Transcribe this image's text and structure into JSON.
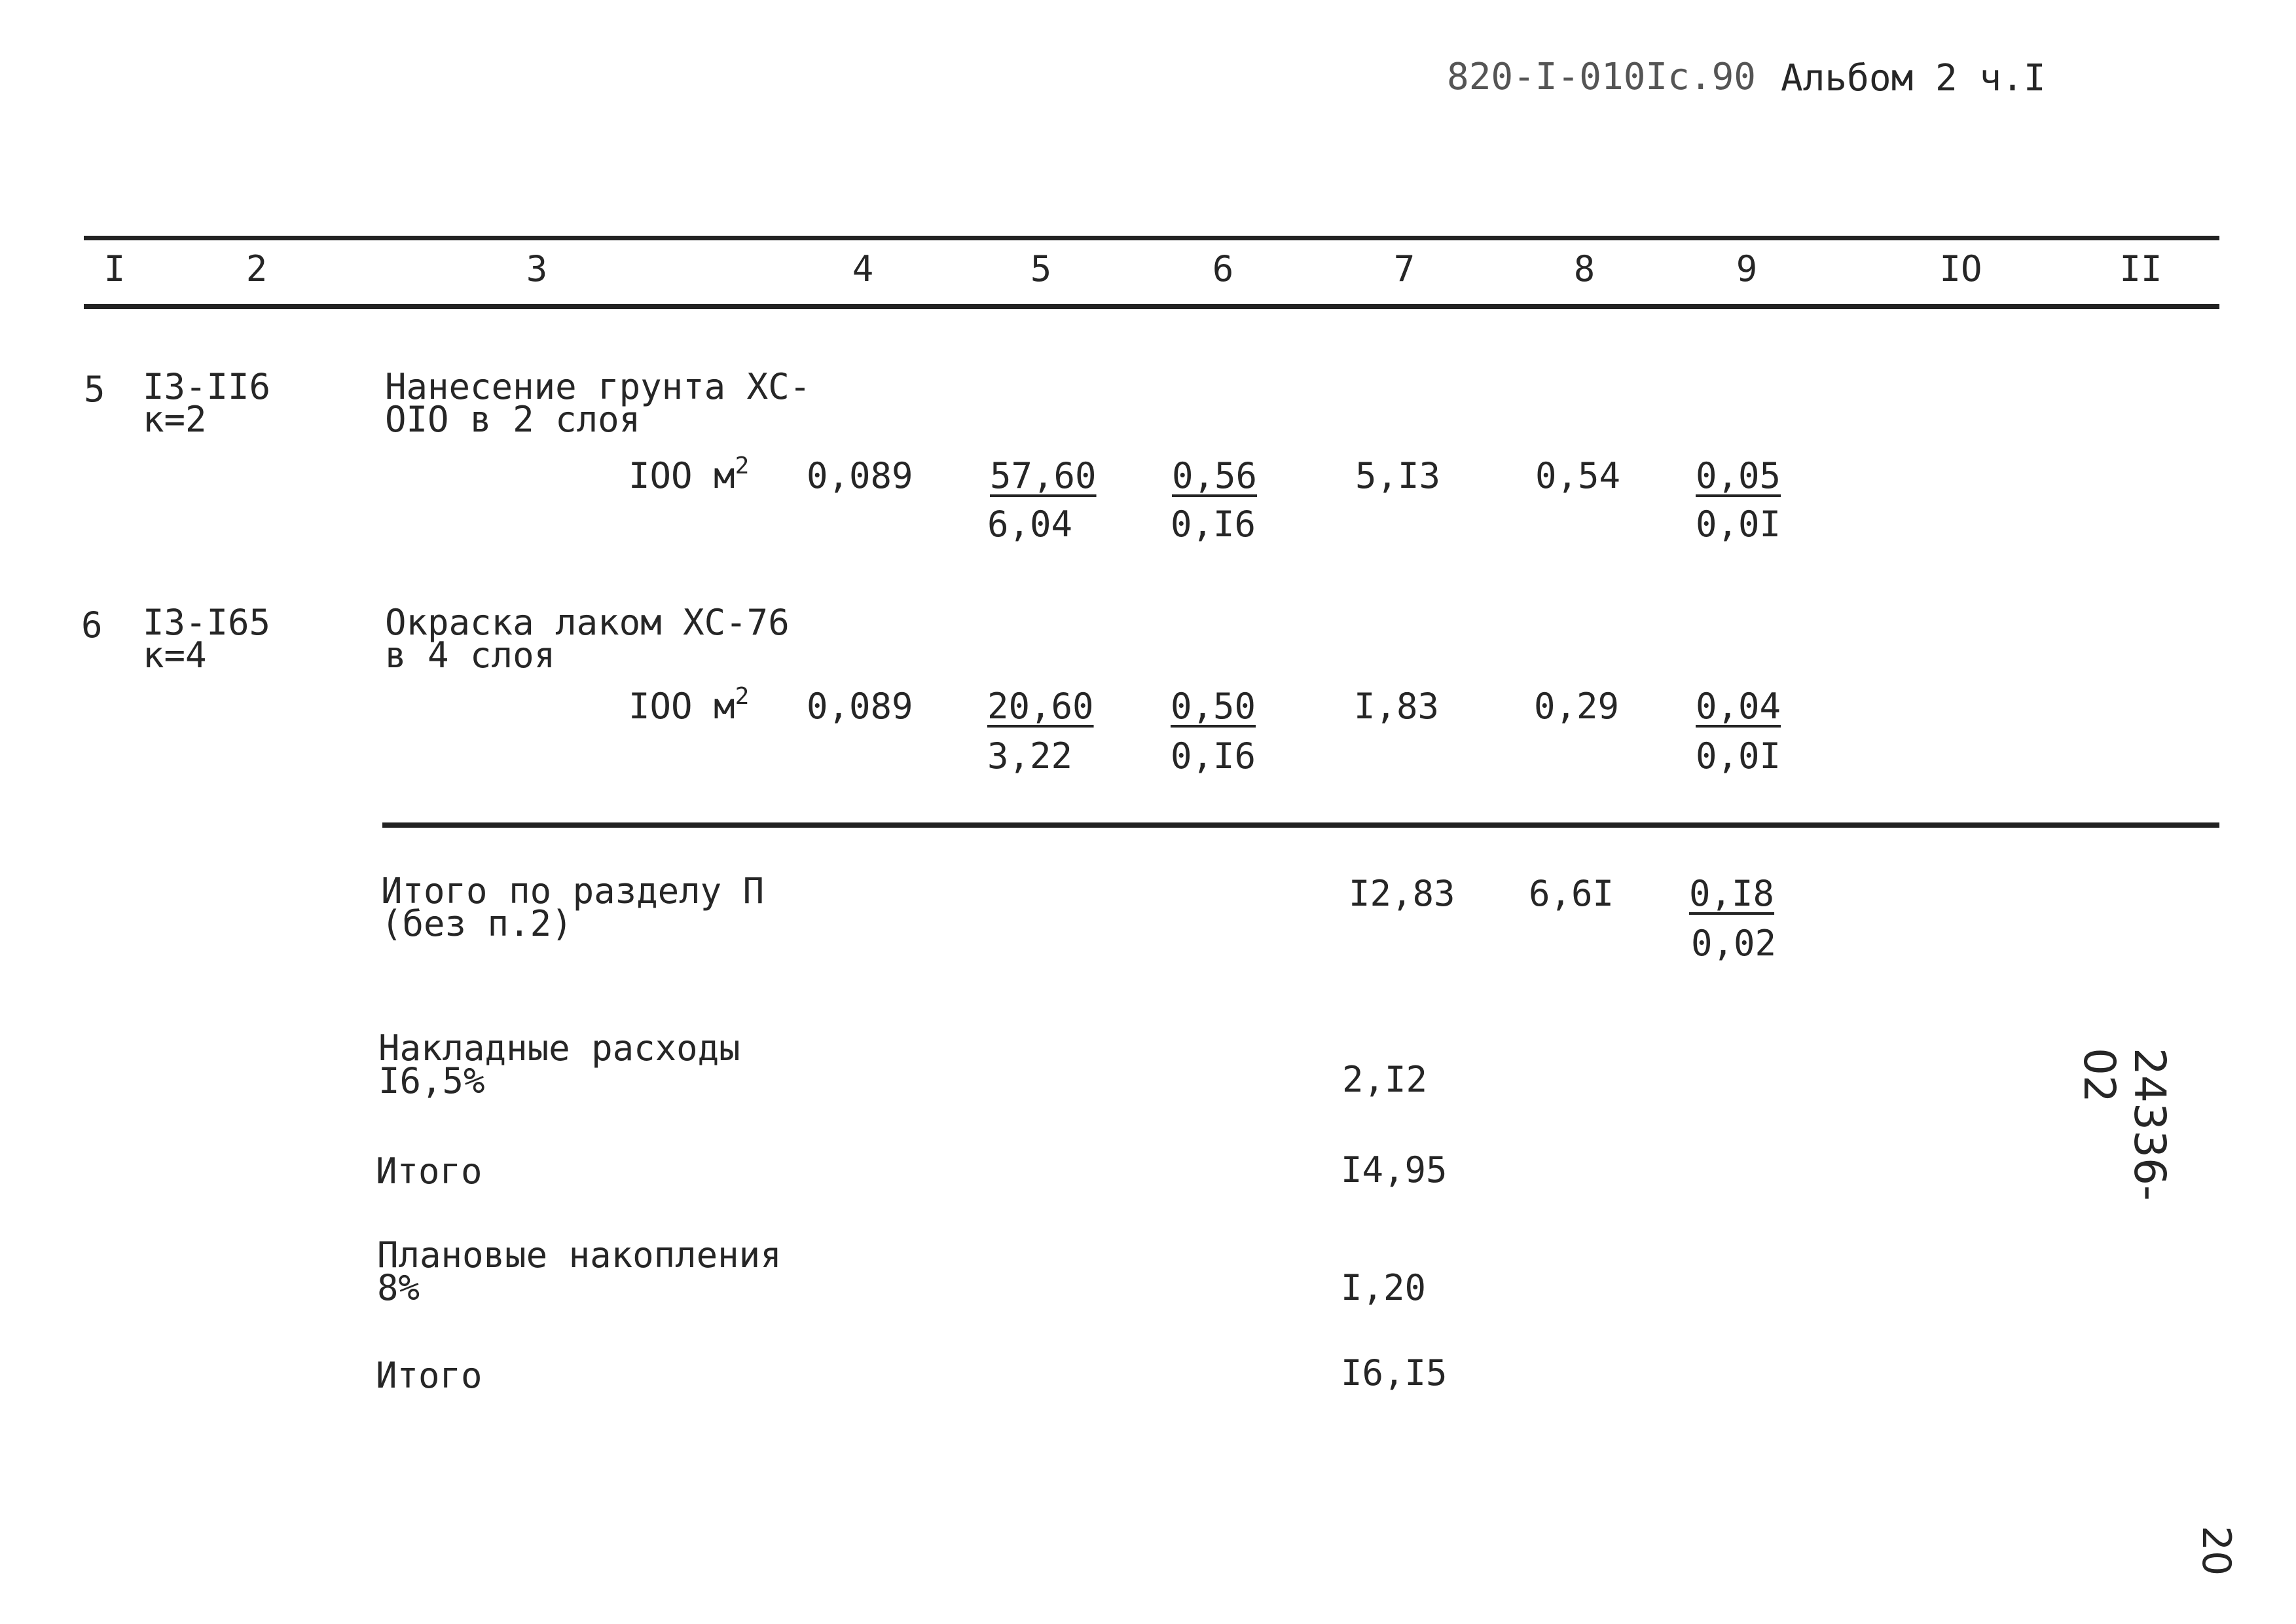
{
  "header": {
    "doc_code": "820-I-010Ic.90",
    "album": "Альбом 2 ч.I"
  },
  "columns": [
    "I",
    "2",
    "3",
    "4",
    "5",
    "6",
    "7",
    "8",
    "9",
    "IO",
    "II"
  ],
  "rows": [
    {
      "num": "5",
      "code": "I3-II6\nк=2",
      "desc": "Нанесение грунта ХС-\nOIO в 2 слоя",
      "unit": "IOO м",
      "unit_sup": "2",
      "qty": "0,089",
      "c5_top": "57,60",
      "c5_bot": "6,04",
      "c6_top": "0,56",
      "c6_bot": "0,I6",
      "c7": "5,I3",
      "c8": "0,54",
      "c9_top": "0,05",
      "c9_bot": "0,0I"
    },
    {
      "num": "6",
      "code": "I3-I65\nк=4",
      "desc": "Окраска лаком ХС-76\nв 4 слоя",
      "unit": "IOO м",
      "unit_sup": "2",
      "qty": "0,089",
      "c5_top": "20,60",
      "c5_bot": "3,22",
      "c6_top": "0,50",
      "c6_bot": "0,I6",
      "c7": "I,83",
      "c8": "0,29",
      "c9_top": "0,04",
      "c9_bot": "0,0I"
    }
  ],
  "summary": [
    {
      "label": "Итого по разделу П\n(без п.2)",
      "c7": "I2,83",
      "c8": "6,6I",
      "c9_top": "0,I8",
      "c9_bot": "0,02"
    },
    {
      "label": "Накладные расходы\nI6,5%",
      "c7": "2,I2"
    },
    {
      "label": "Итого",
      "c7": "I4,95"
    },
    {
      "label": "Плановые накопления\n8%",
      "c7": "I,20"
    },
    {
      "label": "Итого",
      "c7": "I6,I5"
    }
  ],
  "side_number": "24336-02",
  "page_number": "20"
}
